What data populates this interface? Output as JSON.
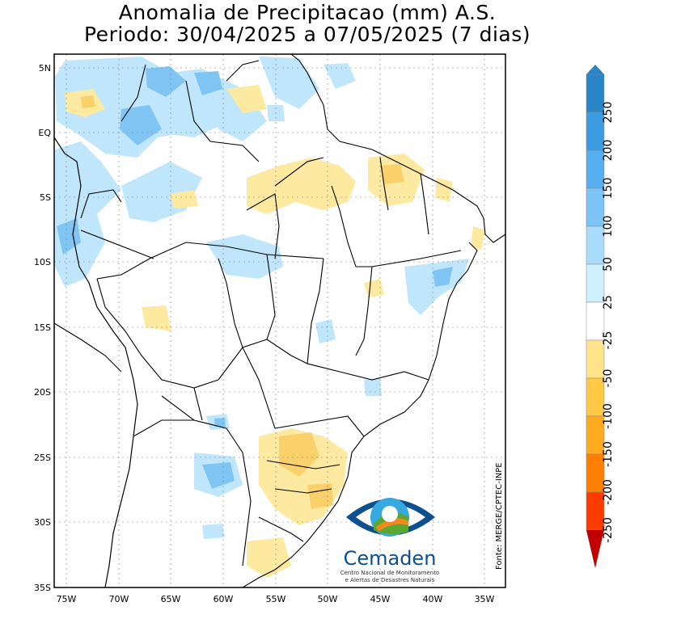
{
  "title": {
    "line1": "Anomalia de Precipitacao (mm) A.S.",
    "line2": "Periodo: 30/04/2025 a 07/05/2025 (7 dias)"
  },
  "axes": {
    "lat_labels": [
      "5N",
      "EQ",
      "5S",
      "10S",
      "15S",
      "20S",
      "25S",
      "30S",
      "35S"
    ],
    "lon_labels": [
      "75W",
      "70W",
      "65W",
      "60W",
      "55W",
      "50W",
      "45W",
      "40W",
      "35W"
    ]
  },
  "source": "Fonte: MERGE/CPTEC-INPE",
  "logo": {
    "name": "Cemaden",
    "subtitle_line1": "Centro Nacional de Monitoramento",
    "subtitle_line2": "e Alertas de Desastres Naturais"
  },
  "legend": {
    "bins": [
      {
        "label": "250",
        "color": "#2a86c8"
      },
      {
        "label": "200",
        "color": "#3b9ae0"
      },
      {
        "label": "150",
        "color": "#56aef0"
      },
      {
        "label": "100",
        "color": "#7dc4f6"
      },
      {
        "label": "50",
        "color": "#a9dcfa"
      },
      {
        "label": "25",
        "color": "#cff0ff"
      },
      {
        "label": "-25",
        "color": "#ffffff"
      },
      {
        "label": "-50",
        "color": "#ffe38a"
      },
      {
        "label": "-100",
        "color": "#ffc845"
      },
      {
        "label": "-150",
        "color": "#ffab1f"
      },
      {
        "label": "-200",
        "color": "#ff7f00"
      },
      {
        "label": "-250",
        "color": "#ff3c00"
      },
      {
        "label": "",
        "color": "#c00000"
      }
    ]
  },
  "colors": {
    "positive_light": "#bfe6fb",
    "positive_mid": "#7fc5f3",
    "negative_light": "#fde9a0",
    "negative_mid": "#f9d06a",
    "border": "#000000",
    "logo_blue": "#0d4f8f",
    "logo_light_blue": "#35a9e0",
    "logo_orange": "#f08a1f",
    "logo_green": "#5aa832"
  }
}
